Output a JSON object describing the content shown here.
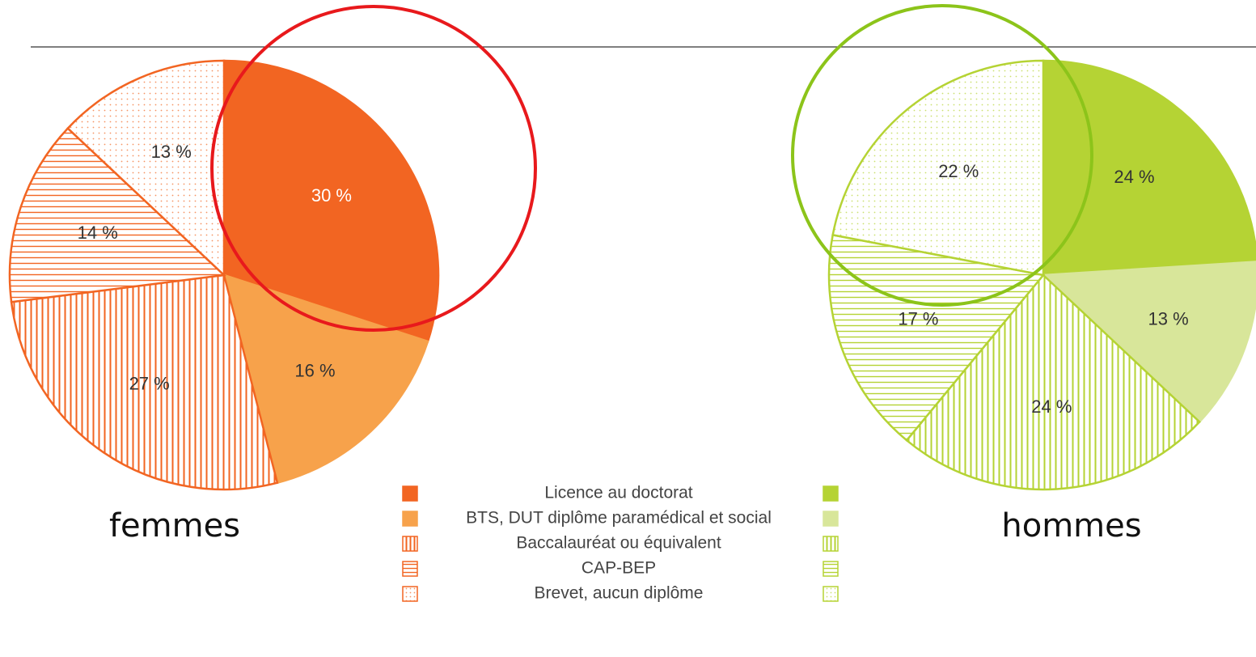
{
  "chart_data": [
    {
      "type": "pie",
      "title": "femmes",
      "values": [
        30,
        16,
        27,
        14,
        13
      ],
      "value_labels": [
        "30 %",
        "16 %",
        "27 %",
        "14 %",
        "13 %"
      ],
      "colors": [
        "#f26522",
        "#f7a24b",
        "#f26522",
        "#f26522",
        "#f26522"
      ],
      "patterns": [
        "solid",
        "solid",
        "vertical",
        "horizontal",
        "dots"
      ]
    },
    {
      "type": "pie",
      "title": "hommes",
      "values": [
        24,
        13,
        24,
        17,
        22
      ],
      "value_labels": [
        "24 %",
        "13 %",
        "24 %",
        "17 %",
        "22 %"
      ],
      "colors": [
        "#b5d334",
        "#d8e69a",
        "#b5d334",
        "#b5d334",
        "#b5d334"
      ],
      "patterns": [
        "solid",
        "solid",
        "vertical",
        "horizontal",
        "dots"
      ]
    }
  ],
  "legend": [
    "Licence au doctorat",
    "BTS, DUT diplôme paramédical et social",
    "Baccalauréat ou équivalent",
    "CAP-BEP",
    "Brevet, aucun diplôme"
  ]
}
